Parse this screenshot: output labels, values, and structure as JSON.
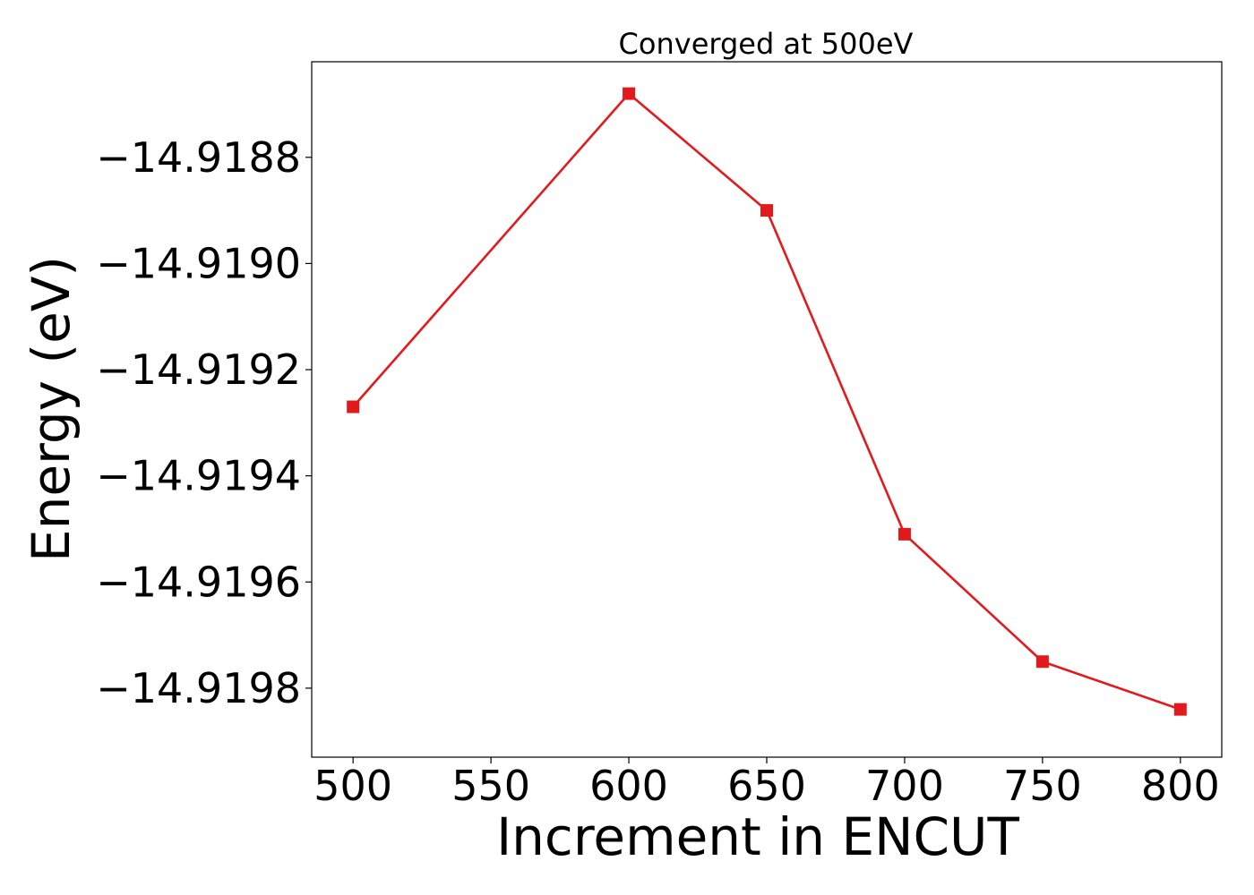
{
  "chart_data": {
    "type": "line",
    "title": "Converged at 500eV",
    "xlabel": "Increment in ENCUT",
    "ylabel": "Energy (eV)",
    "x": [
      500,
      600,
      650,
      700,
      750,
      800
    ],
    "series": [
      {
        "values": [
          -14.91927,
          -14.91868,
          -14.9189,
          -14.91951,
          -14.91975,
          -14.91984
        ],
        "color": "#e31a1c",
        "marker": "square"
      }
    ],
    "xticks": [
      500,
      550,
      600,
      650,
      700,
      750,
      800
    ],
    "xtick_labels": [
      "500",
      "550",
      "600",
      "650",
      "700",
      "750",
      "800"
    ],
    "yticks": [
      -14.9188,
      -14.919,
      -14.9192,
      -14.9194,
      -14.9196,
      -14.9198
    ],
    "ytick_labels": [
      "−14.9188",
      "−14.9190",
      "−14.9192",
      "−14.9194",
      "−14.9196",
      "−14.9198"
    ],
    "xlim": [
      485,
      815
    ],
    "ylim": [
      -14.91993,
      -14.91862
    ],
    "grid": false,
    "legend": false
  }
}
